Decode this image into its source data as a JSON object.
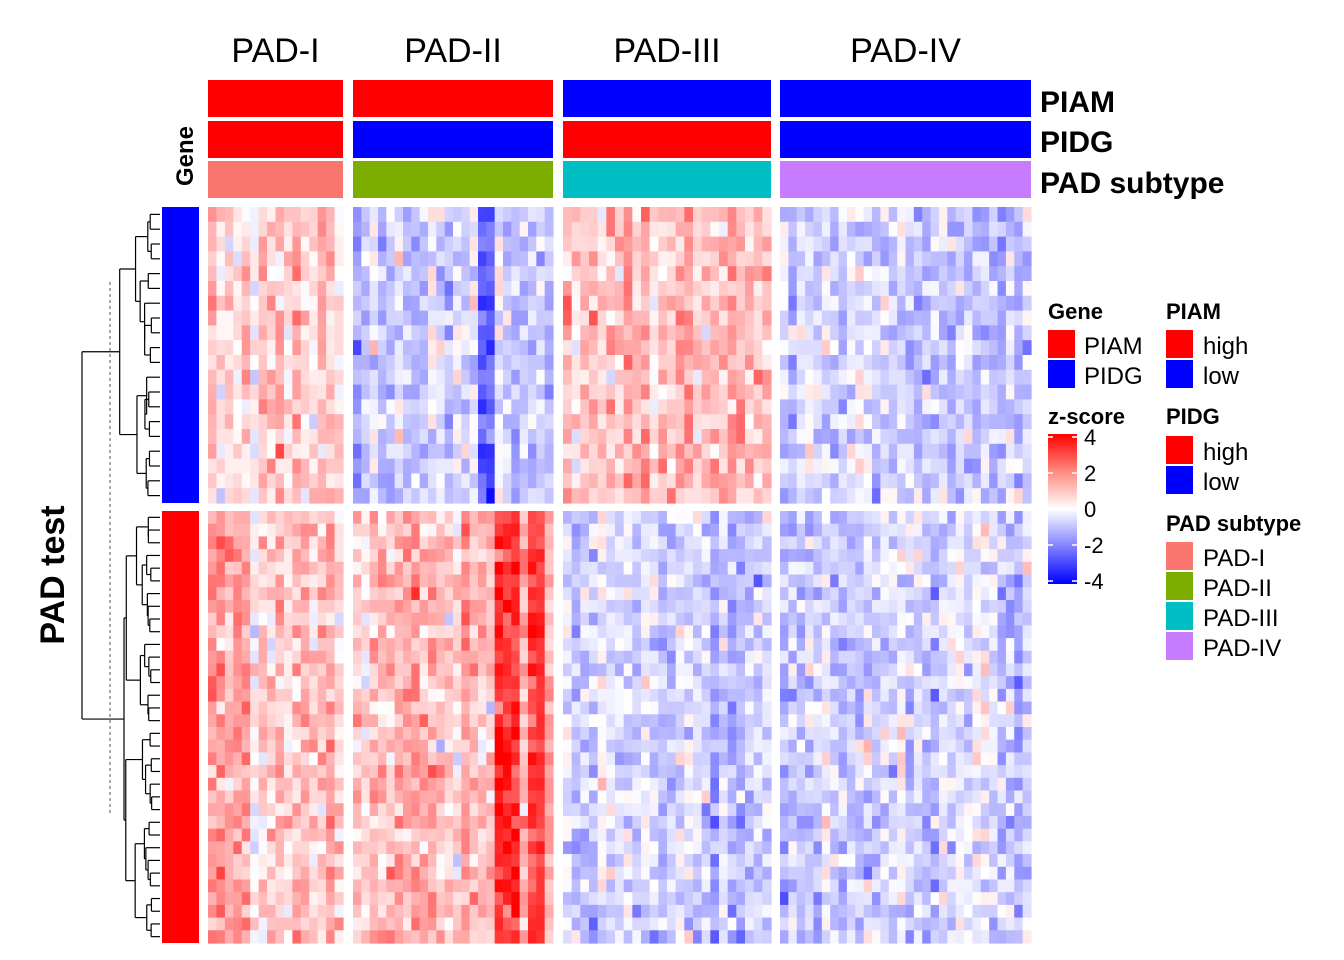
{
  "chart_data": {
    "type": "heatmap",
    "title": "",
    "row_title": "PAD test",
    "row_annotation_title": "Gene",
    "column_groups": [
      {
        "label": "PAD-I",
        "n_samples": 16,
        "PIAM": "high",
        "PIDG": "high",
        "subtype": "PAD-I"
      },
      {
        "label": "PAD-II",
        "n_samples": 24,
        "PIAM": "high",
        "PIDG": "low",
        "subtype": "PAD-II"
      },
      {
        "label": "PAD-III",
        "n_samples": 24,
        "PIAM": "low",
        "PIDG": "high",
        "subtype": "PAD-III"
      },
      {
        "label": "PAD-IV",
        "n_samples": 30,
        "PIAM": "low",
        "PIDG": "low",
        "subtype": "PAD-IV"
      }
    ],
    "row_groups": [
      {
        "gene": "PIDG",
        "n_rows": 20
      },
      {
        "gene": "PIAM",
        "n_rows": 34
      }
    ],
    "mean_z_score": {
      "PIDG": {
        "PAD-I": 0.8,
        "PAD-II": -0.6,
        "PAD-III": 0.9,
        "PAD-IV": -0.7
      },
      "PIAM": {
        "PAD-I": 0.9,
        "PAD-II": 1.0,
        "PAD-III": -0.7,
        "PAD-IV": -0.8
      }
    },
    "annotation_tracks": [
      "PIAM",
      "PIDG",
      "PAD subtype"
    ],
    "color_scale": {
      "title": "z-score",
      "ticks": [
        4,
        2,
        0,
        -2,
        -4
      ],
      "range": [
        -4,
        4
      ],
      "low": "#0000FF",
      "mid": "#FFFFFF",
      "high": "#FF0000"
    },
    "legends": {
      "gene": {
        "title": "Gene",
        "items": [
          {
            "label": "PIAM",
            "color": "#FF0000"
          },
          {
            "label": "PIDG",
            "color": "#0000FF"
          }
        ]
      },
      "piam": {
        "title": "PIAM",
        "items": [
          {
            "label": "high",
            "color": "#FF0000"
          },
          {
            "label": "low",
            "color": "#0000FF"
          }
        ]
      },
      "pidg": {
        "title": "PIDG",
        "items": [
          {
            "label": "high",
            "color": "#FF0000"
          },
          {
            "label": "low",
            "color": "#0000FF"
          }
        ]
      },
      "subtype": {
        "title": "PAD subtype",
        "items": [
          {
            "label": "PAD-I",
            "color": "#F8766D"
          },
          {
            "label": "PAD-II",
            "color": "#7CAE00"
          },
          {
            "label": "PAD-III",
            "color": "#00BFC4"
          },
          {
            "label": "PAD-IV",
            "color": "#C77CFF"
          }
        ]
      }
    }
  }
}
